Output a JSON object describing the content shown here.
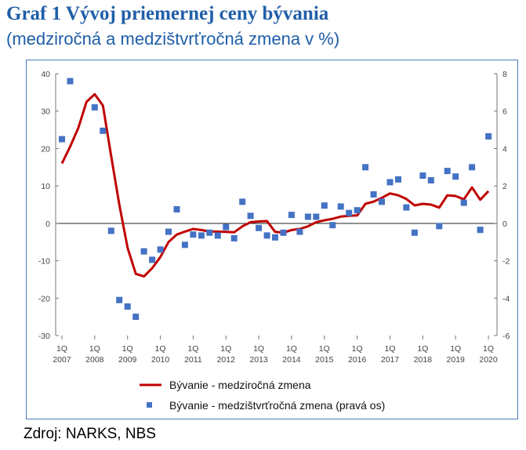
{
  "title": "Graf 1 Vývoj priemernej ceny bývania",
  "subtitle": "(medziročná a medzištvrťročná zmena v %)",
  "source": "Zdroj: NARKS, NBS",
  "colors": {
    "title": "#1f5ea8",
    "line": "#c00000",
    "marker": "#4472c4",
    "zero_line": "#222222",
    "frame": "#4a7bb7"
  },
  "chart_data": {
    "type": "line",
    "title": "",
    "legend_position": "bottom",
    "grid": false,
    "x_tick_labels": [
      {
        "q": "1Q",
        "y": "2007"
      },
      {
        "q": "1Q",
        "y": "2008"
      },
      {
        "q": "1Q",
        "y": "2009"
      },
      {
        "q": "1Q",
        "y": "2010"
      },
      {
        "q": "1Q",
        "y": "2011"
      },
      {
        "q": "1Q",
        "y": "2012"
      },
      {
        "q": "1Q",
        "y": "2013"
      },
      {
        "q": "1Q",
        "y": "2014"
      },
      {
        "q": "1Q",
        "y": "2015"
      },
      {
        "q": "1Q",
        "y": "2016"
      },
      {
        "q": "1Q",
        "y": "2017"
      },
      {
        "q": "1Q",
        "y": "2018"
      },
      {
        "q": "1Q",
        "y": "2019"
      },
      {
        "q": "1Q",
        "y": "2020"
      }
    ],
    "y_left": {
      "min": -30,
      "max": 40,
      "ticks": [
        40,
        30,
        20,
        10,
        0,
        -10,
        -20,
        -30
      ]
    },
    "y_right": {
      "min": -6,
      "max": 8,
      "ticks": [
        8,
        6,
        4,
        2,
        0,
        -2,
        -4,
        -6
      ]
    },
    "series": [
      {
        "name": "Bývanie - medziročná zmena",
        "type": "line",
        "axis": "left",
        "x": [
          "2007Q1",
          "2007Q2",
          "2007Q3",
          "2007Q4",
          "2008Q1",
          "2008Q2",
          "2008Q3",
          "2008Q4",
          "2009Q1",
          "2009Q2",
          "2009Q3",
          "2009Q4",
          "2010Q1",
          "2010Q2",
          "2010Q3",
          "2010Q4",
          "2011Q1",
          "2011Q2",
          "2011Q3",
          "2011Q4",
          "2012Q1",
          "2012Q2",
          "2012Q3",
          "2012Q4",
          "2013Q1",
          "2013Q2",
          "2013Q3",
          "2013Q4",
          "2014Q1",
          "2014Q2",
          "2014Q3",
          "2014Q4",
          "2015Q1",
          "2015Q2",
          "2015Q3",
          "2015Q4",
          "2016Q1",
          "2016Q2",
          "2016Q3",
          "2016Q4",
          "2017Q1",
          "2017Q2",
          "2017Q3",
          "2017Q4",
          "2018Q1",
          "2018Q2",
          "2018Q3",
          "2018Q4",
          "2019Q1",
          "2019Q2",
          "2019Q3",
          "2019Q4",
          "2020Q1"
        ],
        "values": [
          16,
          20.5,
          25.5,
          32.5,
          34.5,
          31.5,
          18,
          5,
          -6.5,
          -13.5,
          -14.2,
          -12,
          -9,
          -5,
          -3,
          -2.2,
          -1.5,
          -1.8,
          -2.2,
          -2.2,
          -2.3,
          -2.4,
          -0.8,
          0.3,
          0.5,
          0.6,
          -2.3,
          -2.5,
          -1.8,
          -1.5,
          -0.8,
          0.3,
          0.8,
          1.2,
          1.8,
          2.0,
          2.1,
          5.2,
          5.8,
          6.8,
          8.0,
          7.5,
          6.5,
          4.8,
          5.2,
          5.0,
          4.2,
          7.5,
          7.3,
          6.4,
          9.6,
          6.3,
          8.6
        ]
      },
      {
        "name": "Bývanie - medzištvrťročná zmena (pravá os)",
        "type": "scatter",
        "axis": "right",
        "x": [
          "2007Q1",
          "2007Q2",
          "2007Q3",
          "2007Q4",
          "2008Q1",
          "2008Q2",
          "2008Q3",
          "2008Q4",
          "2009Q1",
          "2009Q2",
          "2009Q3",
          "2009Q4",
          "2010Q1",
          "2010Q2",
          "2010Q3",
          "2010Q4",
          "2011Q1",
          "2011Q2",
          "2011Q3",
          "2011Q4",
          "2012Q1",
          "2012Q2",
          "2012Q3",
          "2012Q4",
          "2013Q1",
          "2013Q2",
          "2013Q3",
          "2013Q4",
          "2014Q1",
          "2014Q2",
          "2014Q3",
          "2014Q4",
          "2015Q1",
          "2015Q2",
          "2015Q3",
          "2015Q4",
          "2016Q1",
          "2016Q2",
          "2016Q3",
          "2016Q4",
          "2017Q1",
          "2017Q2",
          "2017Q3",
          "2017Q4",
          "2018Q1",
          "2018Q2",
          "2018Q3",
          "2018Q4",
          "2019Q1",
          "2019Q2",
          "2019Q3",
          "2019Q4",
          "2020Q1"
        ],
        "values": [
          4.5,
          7.6,
          null,
          null,
          6.2,
          4.95,
          -0.4,
          -4.1,
          -4.45,
          -5.0,
          -1.5,
          -1.95,
          -1.4,
          -0.45,
          0.75,
          -1.15,
          -0.6,
          -0.65,
          -0.5,
          -0.65,
          -0.2,
          -0.8,
          1.15,
          0.4,
          -0.25,
          -0.65,
          -0.75,
          -0.5,
          0.45,
          -0.45,
          0.35,
          0.35,
          0.95,
          -0.1,
          0.9,
          0.55,
          0.7,
          3.0,
          1.55,
          1.15,
          2.2,
          2.35,
          0.85,
          -0.5,
          2.55,
          2.3,
          -0.15,
          2.8,
          2.5,
          1.1,
          3.0,
          -0.35,
          4.65
        ]
      }
    ]
  }
}
